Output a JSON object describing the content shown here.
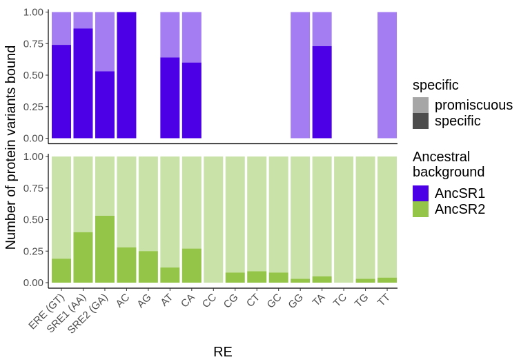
{
  "chart_data": {
    "type": "bar",
    "stacking": "filled",
    "ylabel": "Number of protein variants bound",
    "xlabel": "RE",
    "ylim": [
      0,
      1
    ],
    "yticks": [
      "0.00",
      "0.25",
      "0.50",
      "0.75",
      "1.00"
    ],
    "categories": [
      "ERE (GT)",
      "SRE1 (AA)",
      "SRE2 (GA)",
      "AC",
      "AG",
      "AT",
      "CA",
      "CC",
      "CG",
      "CT",
      "GC",
      "GG",
      "TA",
      "TC",
      "TG",
      "TT"
    ],
    "panels": [
      {
        "background": "AncSR1",
        "specific_values": [
          0.74,
          0.87,
          0.53,
          1.0,
          null,
          0.64,
          0.6,
          null,
          null,
          null,
          null,
          0.0,
          0.73,
          null,
          null,
          0.0
        ],
        "has_bar": [
          true,
          true,
          true,
          true,
          false,
          true,
          true,
          false,
          false,
          false,
          false,
          true,
          true,
          false,
          false,
          true
        ]
      },
      {
        "background": "AncSR2",
        "specific_values": [
          0.19,
          0.4,
          0.53,
          0.28,
          0.25,
          0.12,
          0.27,
          0.0,
          0.08,
          0.09,
          0.08,
          0.03,
          0.05,
          0.0,
          0.03,
          0.04
        ],
        "has_bar": [
          true,
          true,
          true,
          true,
          true,
          true,
          true,
          true,
          true,
          true,
          true,
          true,
          true,
          true,
          true,
          true
        ]
      }
    ],
    "legends": [
      {
        "title": [
          "specific"
        ],
        "entries": [
          {
            "label": "promiscuous",
            "color": "#A6A6A6"
          },
          {
            "label": "specific",
            "color": "#4D4D4D"
          }
        ]
      },
      {
        "title": [
          "Ancestral",
          "background"
        ],
        "entries": [
          {
            "label": "AncSR1",
            "color": "#4B00E6"
          },
          {
            "label": "AncSR2",
            "color": "#94C548"
          }
        ]
      }
    ],
    "colors": {
      "AncSR1_specific": "#4B00E6",
      "AncSR1_promiscuous": "#A47DF3",
      "AncSR2_specific": "#94C548",
      "AncSR2_promiscuous": "#C9E2A7",
      "axis": "#000000"
    }
  }
}
